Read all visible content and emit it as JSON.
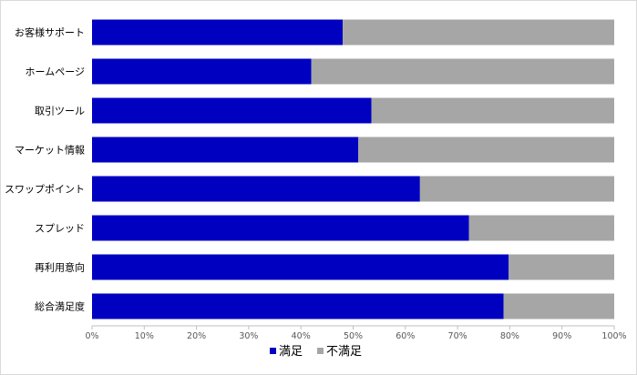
{
  "chart_data": {
    "type": "bar",
    "orientation": "horizontal",
    "stacked": true,
    "categories": [
      "お客様サポート",
      "ホームページ",
      "取引ツール",
      "マーケット情報",
      "スワップポイント",
      "スプレッド",
      "再利用意向",
      "総合満足度"
    ],
    "series": [
      {
        "name": "満足",
        "values": [
          48,
          42,
          53.5,
          51,
          62.8,
          72.2,
          79.8,
          78.8
        ]
      },
      {
        "name": "不満足",
        "values": [
          52,
          58,
          46.5,
          49,
          37.2,
          27.8,
          20.2,
          21.2
        ]
      }
    ],
    "xlim": [
      0,
      100
    ],
    "x_ticks": [
      "0%",
      "10%",
      "20%",
      "30%",
      "40%",
      "50%",
      "60%",
      "70%",
      "80%",
      "90%",
      "100%"
    ],
    "grid": false,
    "legend_position": "bottom",
    "colors": {
      "満足": "#0000c0",
      "不満足": "#a6a6a6"
    }
  }
}
